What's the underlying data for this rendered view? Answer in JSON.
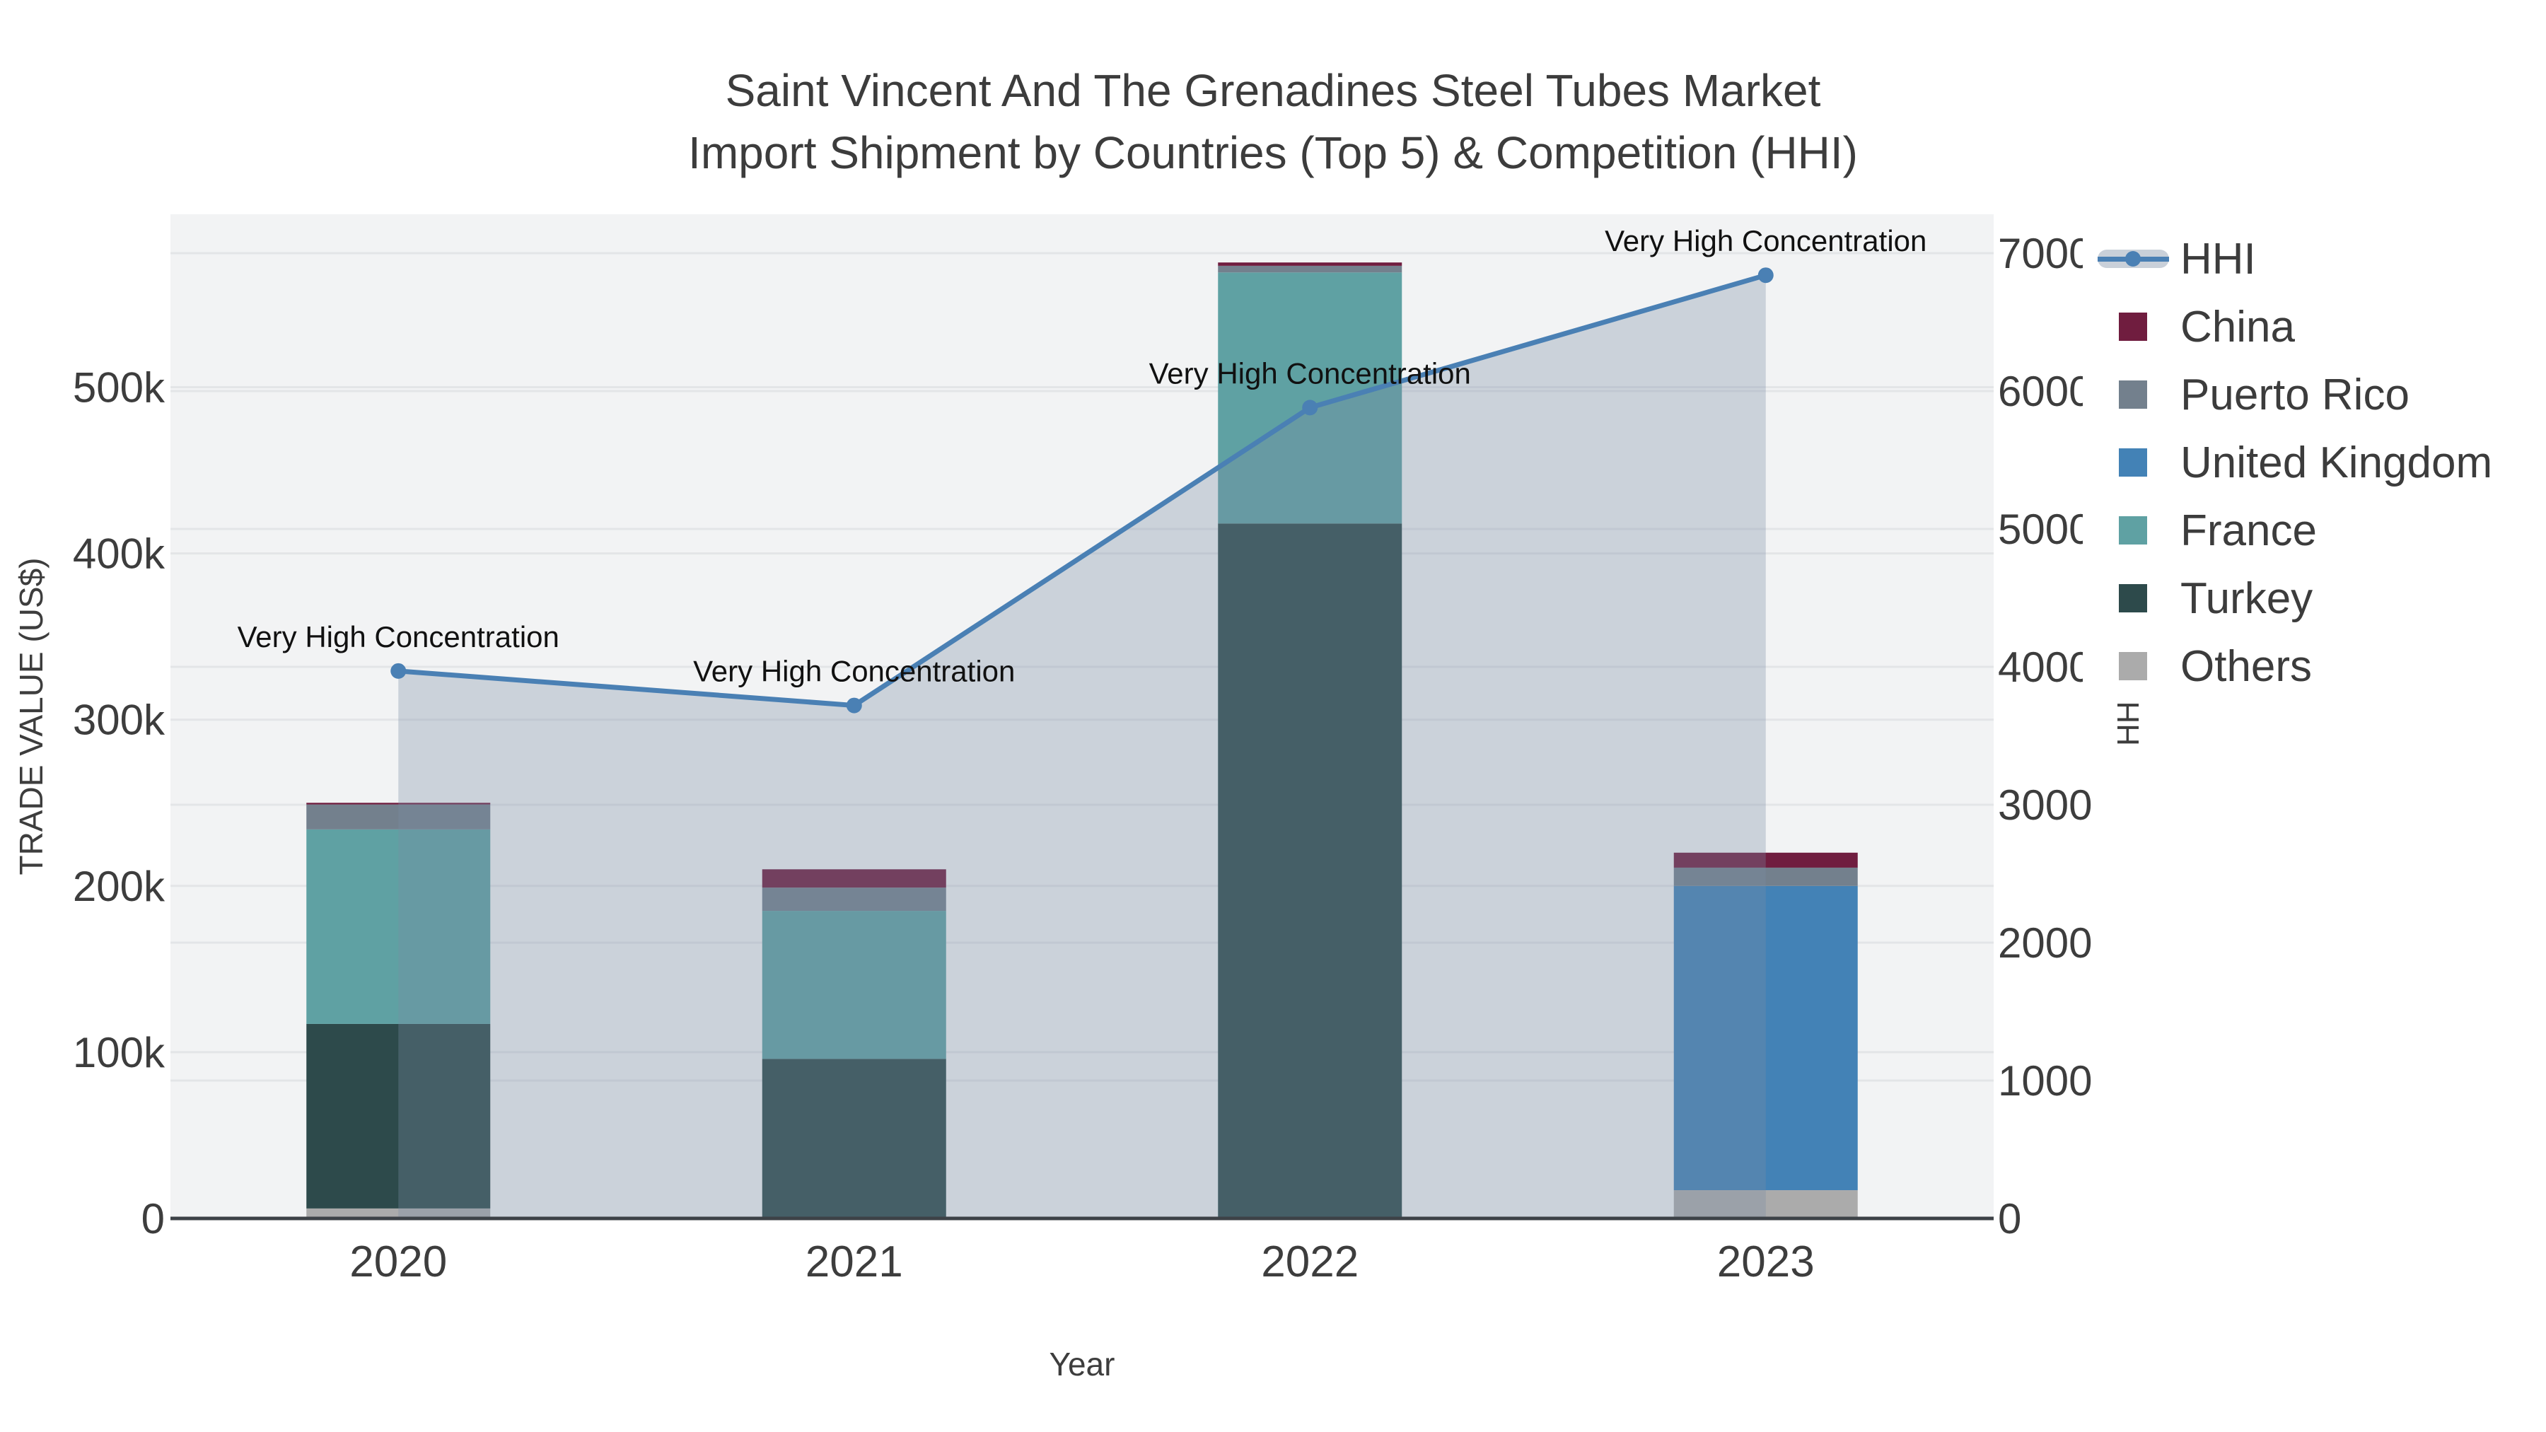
{
  "title": {
    "line1": "Saint Vincent And The Grenadines Steel Tubes Market",
    "line2": "Import Shipment by Countries (Top 5) & Competition (HHI)"
  },
  "axes": {
    "x": {
      "title": "Year",
      "categories": [
        "2020",
        "2021",
        "2022",
        "2023"
      ]
    },
    "y_left": {
      "title": "TRADE VALUE (US$)",
      "range": [
        0,
        604000
      ],
      "ticks": [
        {
          "label": "0",
          "value": 0
        },
        {
          "label": "100k",
          "value": 100000
        },
        {
          "label": "200k",
          "value": 200000
        },
        {
          "label": "300k",
          "value": 300000
        },
        {
          "label": "400k",
          "value": 400000
        },
        {
          "label": "500k",
          "value": 500000
        }
      ]
    },
    "y_right": {
      "title": "HHI",
      "range": [
        0,
        7282
      ],
      "ticks": [
        {
          "label": "0",
          "value": 0
        },
        {
          "label": "1000",
          "value": 1000
        },
        {
          "label": "2000",
          "value": 2000
        },
        {
          "label": "3000",
          "value": 3000
        },
        {
          "label": "4000",
          "value": 4000
        },
        {
          "label": "5000",
          "value": 5000
        },
        {
          "label": "6000",
          "value": 6000
        },
        {
          "label": "7000",
          "value": 7000
        }
      ]
    }
  },
  "legend": {
    "items": [
      {
        "label": "HHI",
        "type": "line",
        "color": "#4a80b4",
        "band": "#c9d0d9"
      },
      {
        "label": "China",
        "type": "swatch",
        "color": "#701d3f"
      },
      {
        "label": "Puerto Rico",
        "type": "swatch",
        "color": "#73808d"
      },
      {
        "label": "United Kingdom",
        "type": "swatch",
        "color": "#4382b6"
      },
      {
        "label": "France",
        "type": "swatch",
        "color": "#5fa1a3"
      },
      {
        "label": "Turkey",
        "type": "swatch",
        "color": "#2d4a4b"
      },
      {
        "label": "Others",
        "type": "swatch",
        "color": "#ababab"
      }
    ]
  },
  "colors": {
    "plot_background": "#f2f3f4",
    "gridline": "#e3e5e7",
    "axis_line": "#3d4247",
    "tick_text": "#3d3d3d",
    "annotation_text": "#111111",
    "hhi_line": "#4a80b4",
    "hhi_area_fill": "rgba(121,140,164,0.32)"
  },
  "chart_data": {
    "type": [
      "bar",
      "line"
    ],
    "bar_mode": "stacked",
    "categories": [
      "2020",
      "2021",
      "2022",
      "2023"
    ],
    "bar_value_axis": "left",
    "bar_series": [
      {
        "name": "China",
        "color": "#701d3f",
        "values": [
          1000,
          11000,
          2000,
          9000
        ]
      },
      {
        "name": "Puerto Rico",
        "color": "#73808d",
        "values": [
          15000,
          14000,
          4000,
          11000
        ]
      },
      {
        "name": "United Kingdom",
        "color": "#4382b6",
        "values": [
          0,
          0,
          0,
          183000
        ]
      },
      {
        "name": "France",
        "color": "#5fa1a3",
        "values": [
          117000,
          89000,
          151000,
          0
        ]
      },
      {
        "name": "Turkey",
        "color": "#2d4a4b",
        "values": [
          111000,
          95000,
          418000,
          0
        ]
      },
      {
        "name": "Others",
        "color": "#ababab",
        "values": [
          6000,
          1000,
          0,
          17000
        ]
      }
    ],
    "bar_totals": [
      250000,
      210000,
      575000,
      220000
    ],
    "line_series": {
      "name": "HHI",
      "axis": "right",
      "color": "#4a80b4",
      "area_fill": "rgba(121,140,164,0.32)",
      "values": [
        3970,
        3720,
        5880,
        6840
      ],
      "point_annotations": [
        "Very High Concentration",
        "Very High Concentration",
        "Very High Concentration",
        "Very High Concentration"
      ]
    },
    "grid": "on",
    "legend_position": "right"
  }
}
